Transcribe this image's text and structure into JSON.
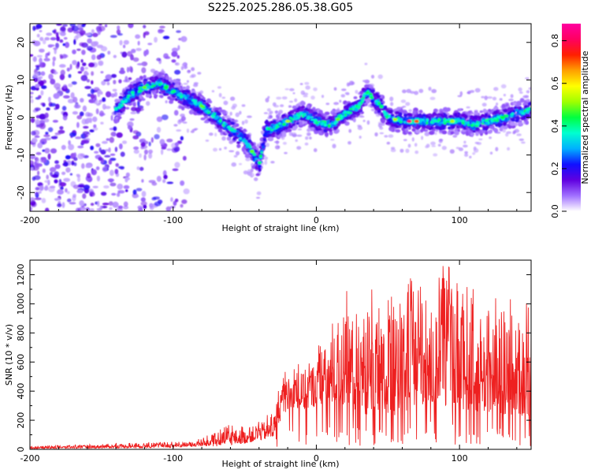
{
  "title": "S225.2025.286.05.38.G05",
  "chart_data": [
    {
      "type": "heatmap",
      "xlabel": "Height of straight line (km)",
      "ylabel": "Frequency (Hz)",
      "xlim": [
        -200,
        150
      ],
      "ylim": [
        -25,
        25
      ],
      "xticks": [
        -200,
        -100,
        0,
        100
      ],
      "yticks": [
        20,
        10,
        0,
        -10,
        -20
      ],
      "colorbar": {
        "label": "Normalized spectral amplitude",
        "range": [
          0,
          0.88
        ],
        "ticks": [
          "0.0",
          "0.2",
          "0.4",
          "0.6",
          "0.8"
        ],
        "colors": [
          "#ffffff",
          "#a070ff",
          "#6000e0",
          "#1010ff",
          "#00b0ff",
          "#00ffd0",
          "#00ff40",
          "#a0ff00",
          "#ffff00",
          "#ffa000",
          "#ff2000",
          "#ff0060",
          "#ff00a0"
        ]
      },
      "ridge": {
        "x": [
          -140,
          -130,
          -120,
          -110,
          -100,
          -90,
          -80,
          -70,
          -60,
          -50,
          -45,
          -40,
          -35,
          -30,
          -20,
          -10,
          0,
          10,
          20,
          30,
          35,
          40,
          45,
          50,
          60,
          70,
          80,
          90,
          100,
          110,
          120,
          130,
          140,
          150
        ],
        "y": [
          2,
          6,
          8,
          9,
          7,
          5,
          3,
          0,
          -3,
          -6,
          -9,
          -13,
          -3,
          -3,
          -1,
          1,
          -1,
          -2,
          1,
          3,
          7,
          5,
          3,
          0,
          -1,
          -1,
          -1,
          -1,
          -1,
          -2,
          -1,
          0,
          1,
          2
        ]
      },
      "noise_region_x": [
        -200,
        -90
      ]
    },
    {
      "type": "line",
      "xlabel": "Height of straight line (km)",
      "ylabel": "SNR (10 * v/v)",
      "xlim": [
        -200,
        150
      ],
      "ylim": [
        0,
        1300
      ],
      "xticks": [
        -200,
        -100,
        0,
        100
      ],
      "yticks": [
        0,
        200,
        400,
        600,
        800,
        1000,
        1200
      ],
      "color": "#ee2020",
      "envelope": {
        "x": [
          -200,
          -160,
          -120,
          -100,
          -85,
          -70,
          -60,
          -50,
          -40,
          -30,
          -25,
          -20,
          -10,
          0,
          10,
          20,
          30,
          40,
          50,
          60,
          70,
          80,
          90,
          100,
          110,
          120,
          130,
          140,
          150
        ],
        "low": [
          5,
          8,
          10,
          12,
          18,
          20,
          30,
          40,
          60,
          80,
          200,
          280,
          260,
          300,
          320,
          300,
          250,
          230,
          220,
          240,
          300,
          320,
          300,
          280,
          260,
          250,
          240,
          230,
          220
        ],
        "high": [
          20,
          35,
          50,
          55,
          60,
          120,
          180,
          160,
          220,
          250,
          500,
          560,
          620,
          720,
          900,
          1100,
          1200,
          1100,
          1050,
          1150,
          1200,
          1150,
          1300,
          1150,
          1100,
          1050,
          1100,
          1050,
          1000
        ]
      }
    }
  ]
}
